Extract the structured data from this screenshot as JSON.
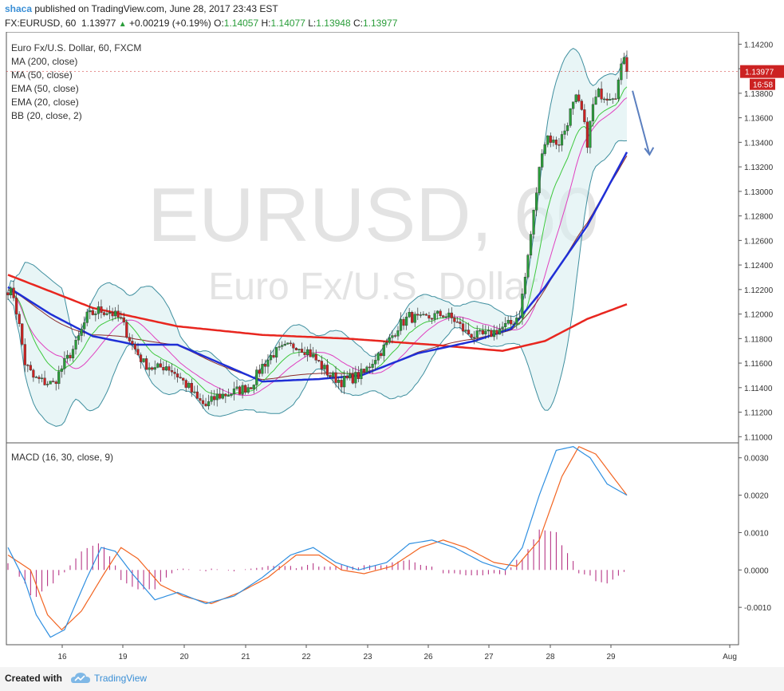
{
  "header": {
    "author": "shaca",
    "published": "published on TradingView.com, June 28, 2017 23:43 EST",
    "symbol": "FX:EURUSD, 60",
    "last": "1.13977",
    "change": "+0.00219 (+0.19%)",
    "o_label": "O:",
    "o_value": "1.14057",
    "h_label": "H:",
    "h_value": "1.14077",
    "l_label": "L:",
    "l_value": "1.13948",
    "c_label": "C:",
    "c_value": "1.13977"
  },
  "footer": {
    "created_with": "Created with",
    "brand": "TradingView"
  },
  "colors": {
    "up": "#2a9d3a",
    "down": "#cc2222",
    "ma200": "#e8261f",
    "ma50": "#1f2fd6",
    "ema50": "#8b2a2a",
    "ema20": "#3ec83e",
    "bb": "#3f8f9f",
    "bbfill": "#d9eef0",
    "macd": "#2f8fe0",
    "signal": "#f26522",
    "hist": "#b0237a",
    "arrow": "#5b7fbf"
  },
  "chart_data": [
    {
      "type": "candlestick",
      "title": "Euro Fx/U.S. Dollar, 60, FXCM",
      "watermark_symbol": "EURUSD, 60",
      "watermark_name": "Euro Fx/U.S. Dollar",
      "legend": [
        "MA (200, close)",
        "MA (50, close)",
        "EMA (50, close)",
        "EMA (20, close)",
        "BB (20, close, 2)"
      ],
      "x_ticks": [
        "16",
        "19",
        "20",
        "21",
        "22",
        "23",
        "26",
        "27",
        "28",
        "29",
        "Aug"
      ],
      "y_ticks": [
        "1.14200",
        "1.14000",
        "1.13800",
        "1.13600",
        "1.13400",
        "1.13200",
        "1.13000",
        "1.12800",
        "1.12600",
        "1.12400",
        "1.12200",
        "1.12000",
        "1.11800",
        "1.11600",
        "1.11400",
        "1.11200",
        "1.11000"
      ],
      "ylim": [
        1.1095,
        1.143
      ],
      "price_label": "1.13977",
      "countdown_label": "16:58",
      "close_keypoints": [
        [
          0,
          1.122
        ],
        [
          2,
          1.1215
        ],
        [
          4,
          1.119
        ],
        [
          6,
          1.116
        ],
        [
          9,
          1.1148
        ],
        [
          12,
          1.1145
        ],
        [
          16,
          1.1143
        ],
        [
          20,
          1.116
        ],
        [
          24,
          1.1175
        ],
        [
          28,
          1.1198
        ],
        [
          32,
          1.1203
        ],
        [
          36,
          1.1202
        ],
        [
          40,
          1.1195
        ],
        [
          44,
          1.1175
        ],
        [
          48,
          1.116
        ],
        [
          52,
          1.1155
        ],
        [
          56,
          1.1158
        ],
        [
          60,
          1.115
        ],
        [
          64,
          1.114
        ],
        [
          67,
          1.113
        ],
        [
          70,
          1.1125
        ],
        [
          74,
          1.1133
        ],
        [
          78,
          1.1135
        ],
        [
          82,
          1.1138
        ],
        [
          86,
          1.1142
        ],
        [
          90,
          1.1158
        ],
        [
          94,
          1.1168
        ],
        [
          98,
          1.1172
        ],
        [
          102,
          1.1175
        ],
        [
          106,
          1.117
        ],
        [
          110,
          1.116
        ],
        [
          114,
          1.115
        ],
        [
          118,
          1.1145
        ],
        [
          122,
          1.1148
        ],
        [
          126,
          1.1152
        ],
        [
          130,
          1.1165
        ],
        [
          134,
          1.1175
        ],
        [
          138,
          1.119
        ],
        [
          142,
          1.1198
        ],
        [
          146,
          1.1195
        ],
        [
          150,
          1.1198
        ],
        [
          154,
          1.12
        ],
        [
          158,
          1.1195
        ],
        [
          162,
          1.1185
        ],
        [
          166,
          1.1182
        ],
        [
          170,
          1.1183
        ],
        [
          174,
          1.1188
        ],
        [
          178,
          1.1192
        ],
        [
          181,
          1.12
        ],
        [
          183,
          1.123
        ],
        [
          185,
          1.1265
        ],
        [
          187,
          1.13
        ],
        [
          189,
          1.1335
        ],
        [
          191,
          1.1345
        ],
        [
          193,
          1.134
        ],
        [
          195,
          1.134
        ],
        [
          197,
          1.135
        ],
        [
          199,
          1.1365
        ],
        [
          201,
          1.1375
        ],
        [
          203,
          1.1365
        ],
        [
          205,
          1.134
        ],
        [
          207,
          1.137
        ],
        [
          209,
          1.138
        ],
        [
          212,
          1.1378
        ],
        [
          215,
          1.138
        ],
        [
          217,
          1.14
        ],
        [
          218,
          1.1412
        ],
        [
          219,
          1.1398
        ]
      ],
      "ma200_keypoints": [
        [
          0,
          1.1232
        ],
        [
          30,
          1.1205
        ],
        [
          60,
          1.119
        ],
        [
          90,
          1.1183
        ],
        [
          120,
          1.118
        ],
        [
          150,
          1.1175
        ],
        [
          175,
          1.117
        ],
        [
          190,
          1.1178
        ],
        [
          205,
          1.1196
        ],
        [
          219,
          1.1208
        ]
      ],
      "ma50_keypoints": [
        [
          0,
          1.1222
        ],
        [
          15,
          1.12
        ],
        [
          30,
          1.1182
        ],
        [
          45,
          1.1175
        ],
        [
          60,
          1.1175
        ],
        [
          75,
          1.116
        ],
        [
          90,
          1.1145
        ],
        [
          110,
          1.1147
        ],
        [
          125,
          1.115
        ],
        [
          145,
          1.1168
        ],
        [
          165,
          1.1178
        ],
        [
          178,
          1.1188
        ],
        [
          190,
          1.1222
        ],
        [
          205,
          1.1272
        ],
        [
          219,
          1.1332
        ]
      ],
      "arrow": {
        "from": [
          221,
          1.1382
        ],
        "to": [
          227,
          1.133
        ]
      }
    },
    {
      "type": "line",
      "title": "MACD (16, 30, close, 9)",
      "y_ticks": [
        "0.0030",
        "0.0020",
        "0.0010",
        "0.0000",
        "-0.0010"
      ],
      "ylim": [
        -0.002,
        0.0034
      ],
      "macd_keypoints": [
        [
          0,
          0.0006
        ],
        [
          6,
          -0.0003
        ],
        [
          10,
          -0.0012
        ],
        [
          15,
          -0.0018
        ],
        [
          20,
          -0.0016
        ],
        [
          28,
          -0.0002
        ],
        [
          33,
          0.0006
        ],
        [
          38,
          0.0005
        ],
        [
          44,
          -0.0001
        ],
        [
          52,
          -0.0008
        ],
        [
          60,
          -0.0006
        ],
        [
          70,
          -0.0009
        ],
        [
          80,
          -0.0007
        ],
        [
          90,
          -0.0002
        ],
        [
          100,
          0.0004
        ],
        [
          108,
          0.0006
        ],
        [
          116,
          0.0002
        ],
        [
          124,
          0.0
        ],
        [
          134,
          0.0002
        ],
        [
          142,
          0.0007
        ],
        [
          150,
          0.0008
        ],
        [
          158,
          0.0006
        ],
        [
          168,
          0.0002
        ],
        [
          176,
          0.0
        ],
        [
          182,
          0.0006
        ],
        [
          188,
          0.002
        ],
        [
          194,
          0.0032
        ],
        [
          200,
          0.0033
        ],
        [
          206,
          0.003
        ],
        [
          212,
          0.0023
        ],
        [
          219,
          0.002
        ]
      ],
      "signal_keypoints": [
        [
          0,
          0.0004
        ],
        [
          8,
          0.0
        ],
        [
          14,
          -0.0012
        ],
        [
          19,
          -0.0016
        ],
        [
          26,
          -0.0011
        ],
        [
          34,
          -0.0001
        ],
        [
          40,
          0.0006
        ],
        [
          46,
          0.0003
        ],
        [
          54,
          -0.0004
        ],
        [
          62,
          -0.0007
        ],
        [
          72,
          -0.0009
        ],
        [
          82,
          -0.0006
        ],
        [
          92,
          -0.0002
        ],
        [
          102,
          0.0004
        ],
        [
          110,
          0.0004
        ],
        [
          118,
          0.0
        ],
        [
          126,
          -0.0001
        ],
        [
          136,
          0.0001
        ],
        [
          146,
          0.0006
        ],
        [
          154,
          0.0008
        ],
        [
          162,
          0.0006
        ],
        [
          172,
          0.0002
        ],
        [
          180,
          0.0001
        ],
        [
          188,
          0.0008
        ],
        [
          196,
          0.0025
        ],
        [
          202,
          0.0033
        ],
        [
          208,
          0.0031
        ],
        [
          214,
          0.0025
        ],
        [
          219,
          0.002
        ]
      ]
    }
  ]
}
